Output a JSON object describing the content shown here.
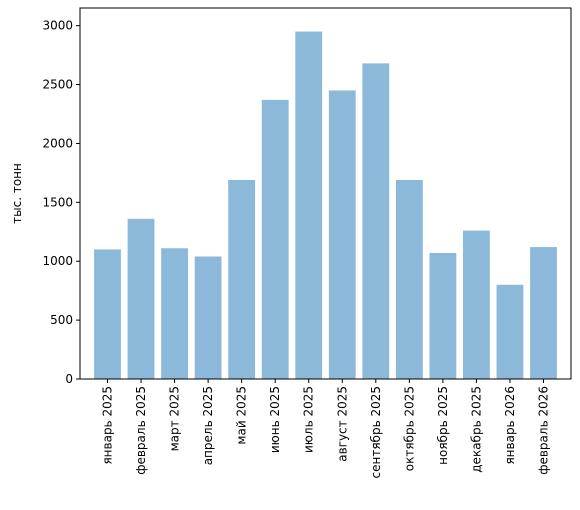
{
  "chart_data": {
    "type": "bar",
    "title": "",
    "xlabel": "",
    "ylabel": "тыс. тонн",
    "categories": [
      "январь 2025",
      "февраль 2025",
      "март 2025",
      "апрель 2025",
      "май 2025",
      "июнь 2025",
      "июль 2025",
      "август 2025",
      "сентябрь 2025",
      "октябрь 2025",
      "ноябрь 2025",
      "декабрь 2025",
      "январь 2026",
      "февраль 2026"
    ],
    "values": [
      1100,
      1360,
      1110,
      1040,
      1690,
      2370,
      2950,
      2450,
      2680,
      1690,
      1070,
      1260,
      800,
      1120
    ],
    "ylim": [
      0,
      3000
    ],
    "yticks": [
      0,
      500,
      1000,
      1500,
      2000,
      2500,
      3000
    ],
    "ytick_labels": [
      "0",
      "500",
      "1000",
      "1500",
      "2000",
      "2500",
      "3000"
    ],
    "grid": false,
    "legend": false,
    "bar_color": "#8cb9da"
  }
}
